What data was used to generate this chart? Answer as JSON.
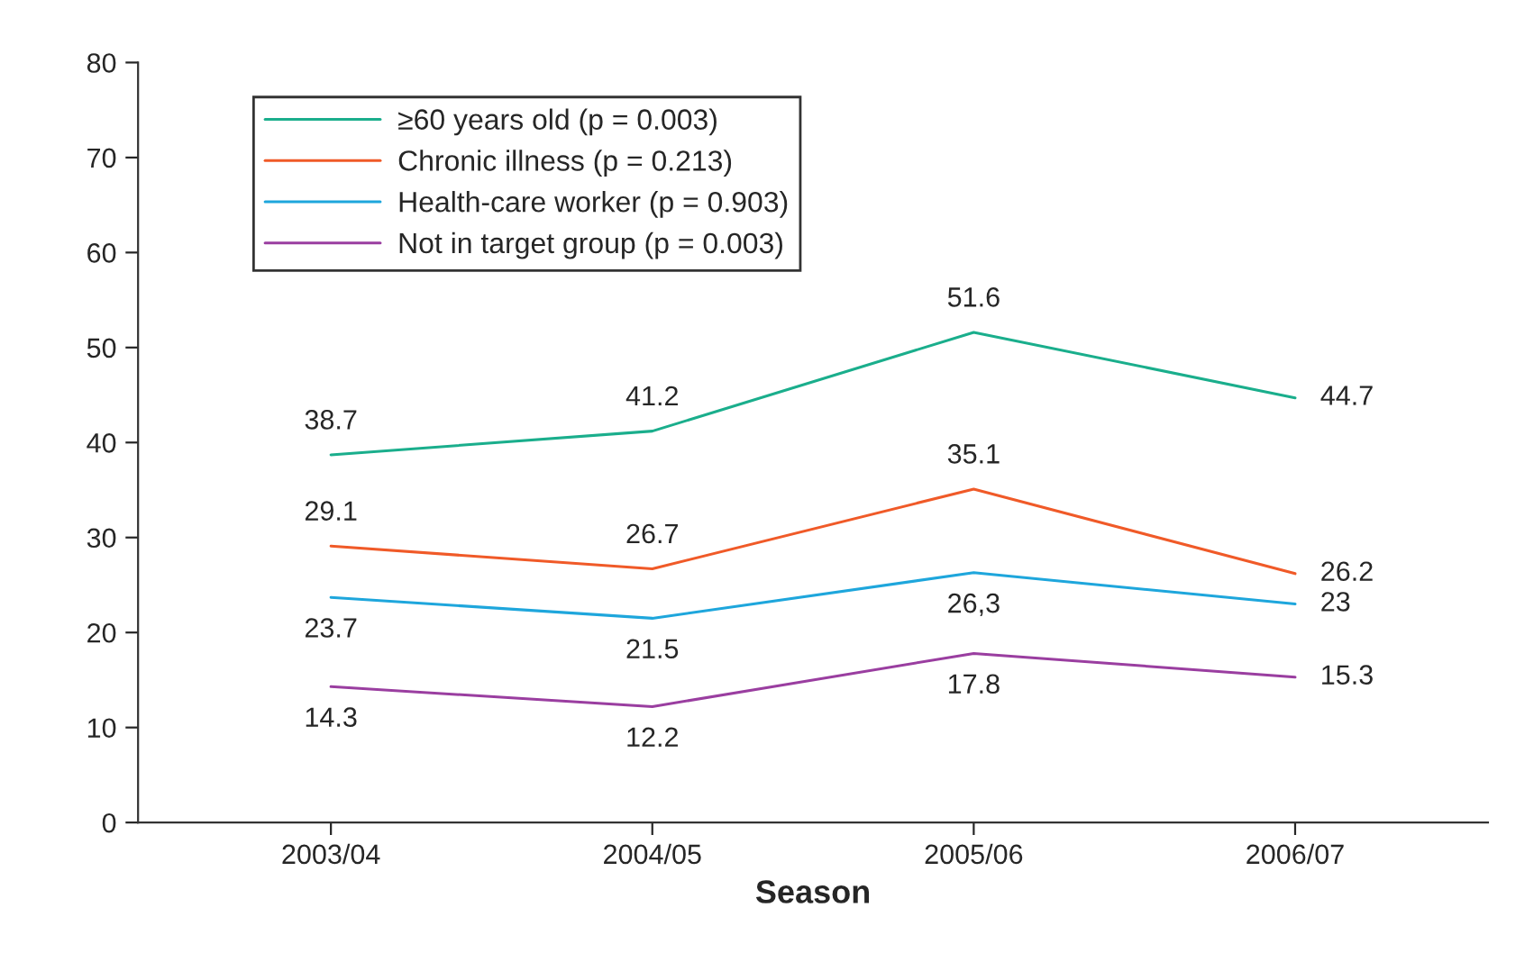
{
  "chart_data": {
    "type": "line",
    "xlabel": "Season",
    "categories": [
      "2003/04",
      "2004/05",
      "2005/06",
      "2006/07"
    ],
    "series": [
      {
        "name": "≥60 years old (p = 0.003)",
        "color": "#1aae8c",
        "values": [
          38.7,
          41.2,
          51.6,
          44.7
        ],
        "value_labels": [
          "38.7",
          "41.2",
          "51.6",
          "44.7"
        ]
      },
      {
        "name": "Chronic illness (p = 0.213)",
        "color": "#f05a28",
        "values": [
          29.1,
          26.7,
          35.1,
          26.2
        ],
        "value_labels": [
          "29.1",
          "26.7",
          "35.1",
          "26.2"
        ]
      },
      {
        "name": "Health-care worker (p = 0.903)",
        "color": "#1ea6dc",
        "values": [
          23.7,
          21.5,
          26.3,
          23
        ],
        "value_labels": [
          "23.7",
          "21.5",
          "26,3",
          "23"
        ]
      },
      {
        "name": "Not in target group (p = 0.003)",
        "color": "#9a3ea0",
        "values": [
          14.3,
          12.2,
          17.8,
          15.3
        ],
        "value_labels": [
          "14.3",
          "12.2",
          "17.8",
          "15.3"
        ]
      }
    ],
    "ylim": [
      0,
      80
    ],
    "yticks": [
      0,
      10,
      20,
      30,
      40,
      50,
      60,
      70,
      80
    ],
    "grid": false,
    "legend": "top left",
    "marker": "none",
    "line_style": "solid"
  }
}
